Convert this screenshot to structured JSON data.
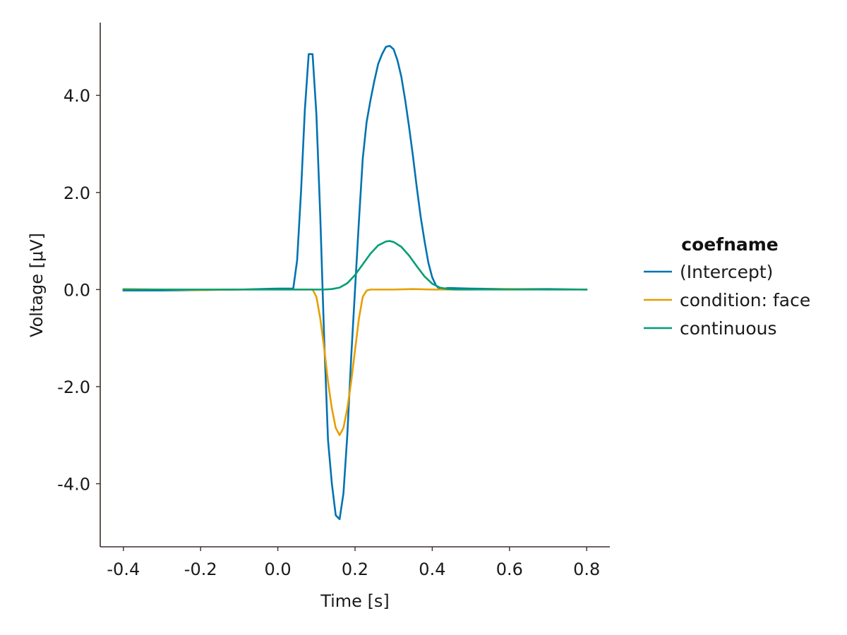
{
  "chart_data": {
    "type": "line",
    "xlabel": "Time [s]",
    "ylabel": "Voltage [μV]",
    "xlim": [
      -0.46,
      0.86
    ],
    "ylim": [
      -5.3,
      5.5
    ],
    "xticks": [
      -0.4,
      -0.2,
      0.0,
      0.2,
      0.4,
      0.6,
      0.8
    ],
    "xtick_labels": [
      "-0.4",
      "-0.2",
      "0.0",
      "0.2",
      "0.4",
      "0.6",
      "0.8"
    ],
    "yticks": [
      -4.0,
      -2.0,
      0.0,
      2.0,
      4.0
    ],
    "ytick_labels": [
      "-4.0",
      "-2.0",
      "0.0",
      "2.0",
      "4.0"
    ],
    "grid": false,
    "legend": {
      "title": "coefname",
      "position": "right"
    },
    "series": [
      {
        "name": "(Intercept)",
        "color": "#0072B2",
        "x": [
          -0.4,
          -0.3,
          -0.2,
          -0.1,
          0.0,
          0.04,
          0.05,
          0.06,
          0.07,
          0.08,
          0.09,
          0.1,
          0.11,
          0.12,
          0.13,
          0.14,
          0.15,
          0.16,
          0.17,
          0.18,
          0.19,
          0.2,
          0.21,
          0.22,
          0.23,
          0.24,
          0.25,
          0.26,
          0.27,
          0.28,
          0.29,
          0.3,
          0.31,
          0.32,
          0.33,
          0.34,
          0.35,
          0.36,
          0.37,
          0.38,
          0.39,
          0.4,
          0.41,
          0.42,
          0.43,
          0.44,
          0.45,
          0.5,
          0.6,
          0.7,
          0.8
        ],
        "y": [
          -0.02,
          -0.02,
          -0.01,
          0.0,
          0.02,
          0.02,
          0.6,
          2.0,
          3.7,
          4.85,
          4.85,
          3.6,
          1.5,
          -1.0,
          -3.1,
          -4.0,
          -4.65,
          -4.73,
          -4.2,
          -3.0,
          -1.4,
          0.0,
          1.4,
          2.7,
          3.45,
          3.9,
          4.3,
          4.65,
          4.85,
          5.0,
          5.02,
          4.95,
          4.72,
          4.38,
          3.9,
          3.35,
          2.75,
          2.1,
          1.5,
          1.0,
          0.55,
          0.25,
          0.08,
          0.01,
          0.02,
          0.03,
          0.03,
          0.02,
          0.01,
          0.01,
          0.0
        ]
      },
      {
        "name": "condition: face",
        "color": "#E69F00",
        "x": [
          -0.4,
          -0.3,
          -0.2,
          -0.1,
          0.0,
          0.05,
          0.09,
          0.1,
          0.11,
          0.12,
          0.13,
          0.14,
          0.15,
          0.16,
          0.17,
          0.18,
          0.19,
          0.2,
          0.21,
          0.22,
          0.23,
          0.24,
          0.25,
          0.3,
          0.35,
          0.4,
          0.5,
          0.6,
          0.7,
          0.8
        ],
        "y": [
          0.01,
          0.0,
          -0.01,
          0.0,
          0.0,
          0.0,
          0.0,
          -0.15,
          -0.6,
          -1.2,
          -1.9,
          -2.45,
          -2.85,
          -3.0,
          -2.85,
          -2.45,
          -1.9,
          -1.25,
          -0.6,
          -0.15,
          -0.02,
          0.0,
          0.0,
          0.0,
          0.01,
          0.0,
          0.0,
          0.01,
          0.0,
          0.0
        ]
      },
      {
        "name": "continuous",
        "color": "#009E73",
        "x": [
          -0.4,
          -0.3,
          -0.2,
          -0.1,
          0.0,
          0.1,
          0.12,
          0.14,
          0.16,
          0.18,
          0.2,
          0.22,
          0.24,
          0.26,
          0.28,
          0.29,
          0.3,
          0.32,
          0.34,
          0.36,
          0.38,
          0.4,
          0.42,
          0.44,
          0.46,
          0.5,
          0.6,
          0.7,
          0.8
        ],
        "y": [
          0.0,
          0.0,
          0.0,
          0.0,
          0.0,
          0.0,
          0.0,
          0.01,
          0.04,
          0.13,
          0.3,
          0.52,
          0.74,
          0.91,
          0.99,
          1.0,
          0.98,
          0.88,
          0.7,
          0.48,
          0.27,
          0.12,
          0.04,
          0.01,
          0.0,
          0.0,
          0.0,
          0.0,
          0.0
        ]
      }
    ]
  }
}
